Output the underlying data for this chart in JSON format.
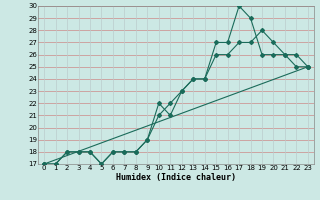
{
  "xlabel": "Humidex (Indice chaleur)",
  "bg_color": "#cce8e4",
  "grid_color_h": "#cc8888",
  "grid_color_v": "#bbcccc",
  "line_color": "#1a6b5a",
  "xlim": [
    -0.5,
    23.5
  ],
  "ylim": [
    17,
    30
  ],
  "xticks": [
    0,
    1,
    2,
    3,
    4,
    5,
    6,
    7,
    8,
    9,
    10,
    11,
    12,
    13,
    14,
    15,
    16,
    17,
    18,
    19,
    20,
    21,
    22,
    23
  ],
  "yticks": [
    17,
    18,
    19,
    20,
    21,
    22,
    23,
    24,
    25,
    26,
    27,
    28,
    29,
    30
  ],
  "line1_x": [
    0,
    1,
    2,
    3,
    4,
    5,
    6,
    7,
    8,
    9,
    10,
    11,
    12,
    13,
    14,
    15,
    16,
    17,
    18,
    19,
    20,
    21,
    22,
    23
  ],
  "line1_y": [
    17,
    17,
    18,
    18,
    18,
    17,
    18,
    18,
    18,
    19,
    22,
    21,
    23,
    24,
    24,
    27,
    27,
    30,
    29,
    26,
    26,
    26,
    25,
    25
  ],
  "line2_x": [
    0,
    1,
    2,
    3,
    4,
    5,
    6,
    7,
    8,
    9,
    10,
    11,
    12,
    13,
    14,
    15,
    16,
    17,
    18,
    19,
    20,
    21,
    22,
    23
  ],
  "line2_y": [
    17,
    17,
    18,
    18,
    18,
    17,
    18,
    18,
    18,
    19,
    21,
    22,
    23,
    24,
    24,
    26,
    26,
    27,
    27,
    28,
    27,
    26,
    26,
    25
  ],
  "line3_x": [
    0,
    23
  ],
  "line3_y": [
    17,
    25
  ],
  "tick_fontsize": 5,
  "xlabel_fontsize": 6,
  "marker_size": 2
}
